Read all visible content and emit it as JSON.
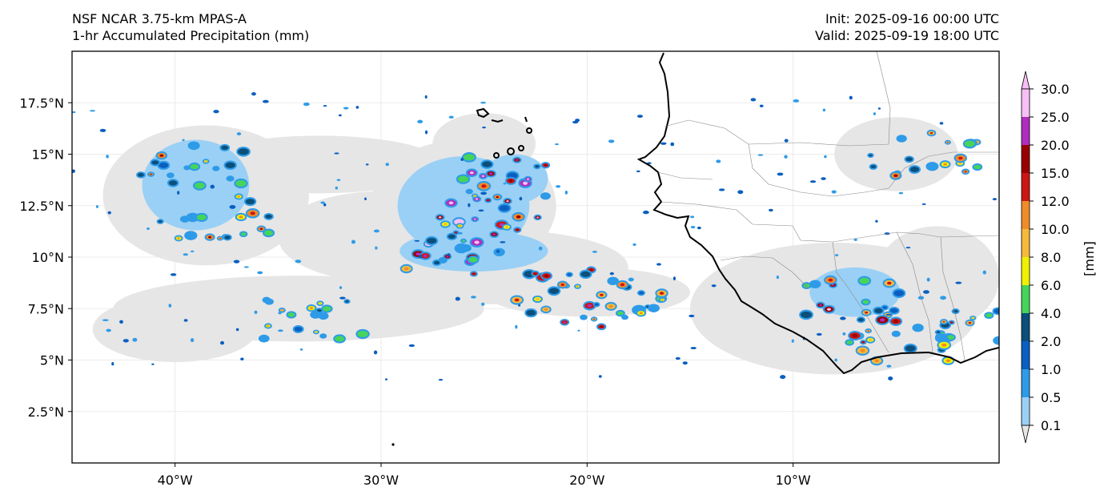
{
  "header": {
    "left_line1": "NSF NCAR 3.75-km MPAS-A",
    "left_line2": "1-hr Accumulated Precipitation (mm)",
    "right_line1": "Init: 2025-09-16 00:00 UTC",
    "right_line2": "Valid: 2025-09-19 18:00 UTC"
  },
  "map": {
    "lon_range": [
      -45,
      0
    ],
    "lat_range": [
      0,
      20
    ],
    "lon_ticks": [
      {
        "value": -40,
        "label": "40°W"
      },
      {
        "value": -30,
        "label": "30°W"
      },
      {
        "value": -20,
        "label": "20°W"
      },
      {
        "value": -10,
        "label": "10°W"
      }
    ],
    "lat_ticks": [
      {
        "value": 17.5,
        "label": "17.5°N"
      },
      {
        "value": 15,
        "label": "15°N"
      },
      {
        "value": 12.5,
        "label": "12.5°N"
      },
      {
        "value": 10,
        "label": "10°N"
      },
      {
        "value": 7.5,
        "label": "7.5°N"
      },
      {
        "value": 5,
        "label": "5°N"
      },
      {
        "value": 2.5,
        "label": "2.5°N"
      }
    ],
    "gridlines": true
  },
  "colorbar": {
    "unit_label": "[mm]",
    "levels": [
      "0.1",
      "0.5",
      "1.0",
      "2.0",
      "4.0",
      "6.0",
      "8.0",
      "10.0",
      "12.0",
      "15.0",
      "20.0",
      "25.0",
      "30.0"
    ],
    "colors": [
      "#e6e6e6",
      "#9ad0f5",
      "#2e9be8",
      "#0a5fc0",
      "#0b4f7a",
      "#47d45a",
      "#f0f000",
      "#f5b93c",
      "#ef8c2a",
      "#cc1515",
      "#990000",
      "#b02dbe",
      "#f7bff5"
    ]
  },
  "chart_data": {
    "type": "heatmap",
    "field": "1-hr Accumulated Precipitation (mm)",
    "rain_systems": [
      {
        "lon": -25.0,
        "lat": 12.0,
        "peak_mm": 30
      },
      {
        "lon": -26.5,
        "lat": 10.0,
        "peak_mm": 30
      },
      {
        "lon": -23.5,
        "lat": 14.0,
        "peak_mm": 25
      },
      {
        "lon": -21.0,
        "lat": 8.3,
        "peak_mm": 20
      },
      {
        "lon": -19.0,
        "lat": 7.6,
        "peak_mm": 15
      },
      {
        "lon": -39.0,
        "lat": 14.5,
        "peak_mm": 15
      },
      {
        "lon": -38.0,
        "lat": 12.0,
        "peak_mm": 12
      },
      {
        "lon": -7.0,
        "lat": 8.0,
        "peak_mm": 20
      },
      {
        "lon": -5.0,
        "lat": 5.8,
        "peak_mm": 15
      },
      {
        "lon": -3.5,
        "lat": 15.0,
        "peak_mm": 12
      },
      {
        "lon": -33.0,
        "lat": 7.0,
        "peak_mm": 10
      },
      {
        "lon": -1.0,
        "lat": 6.5,
        "peak_mm": 12
      }
    ]
  }
}
